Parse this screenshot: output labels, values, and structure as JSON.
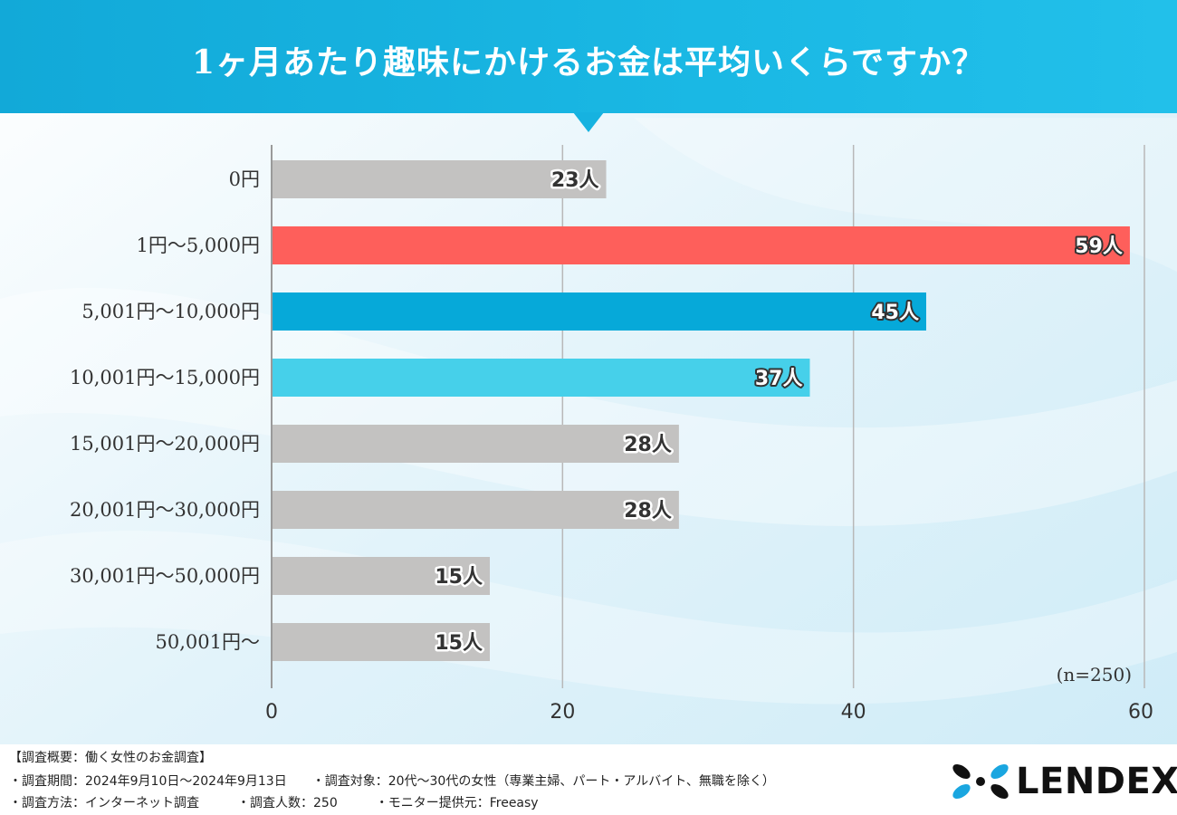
{
  "title": "1ヶ月あたり趣味にかけるお金は平均いくらですか？",
  "chart_data": {
    "type": "bar",
    "orientation": "horizontal",
    "title": "1ヶ月あたり趣味にかけるお金は平均いくらですか？",
    "categories": [
      "0円",
      "1円〜5,000円",
      "5,001円〜10,000円",
      "10,001円〜15,000円",
      "15,001円〜20,000円",
      "20,001円〜30,000円",
      "30,001円〜50,000円",
      "50,001円〜"
    ],
    "values": [
      23,
      59,
      45,
      37,
      28,
      28,
      15,
      15
    ],
    "data_labels": [
      "23人",
      "59人",
      "45人",
      "37人",
      "28人",
      "28人",
      "15人",
      "15人"
    ],
    "bar_colors": [
      "#c3c2c1",
      "#fe5f5b",
      "#06a9d9",
      "#46d0ea",
      "#c3c2c1",
      "#c3c2c1",
      "#c3c2c1",
      "#c3c2c1"
    ],
    "xlim": [
      0,
      60
    ],
    "xticks": [
      0,
      20,
      40,
      60
    ],
    "grid": true,
    "note": "(n=250)"
  },
  "footer": {
    "line1": "【調査概要：働く女性のお金調査】",
    "line2": "・調査期間：2024年9月10日〜2024年9月13日　　・調査対象：20代〜30代の女性（専業主婦、パート・アルバイト、無職を除く）",
    "line3": "・調査方法：インターネット調査　　　・調査人数：250　　　・モニター提供元：Freeasy"
  },
  "logo": {
    "text": "LENDEX",
    "mark_colors": [
      "#111111",
      "#1aa6e0"
    ]
  },
  "colors": {
    "header": "#16b2e0",
    "text": "#333333"
  }
}
